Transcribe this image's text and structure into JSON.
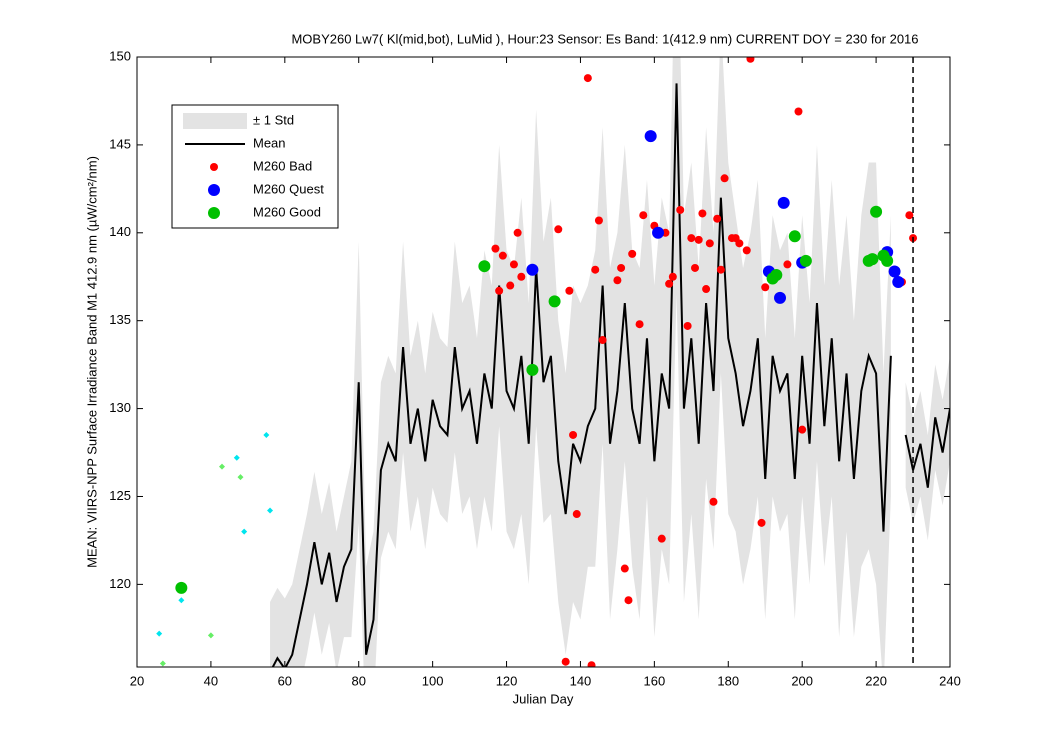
{
  "chart_data": {
    "type": "line",
    "title": "MOBY260   Lw7( Kl(mid,bot), LuMid ),   Hour:23 Sensor: Es Band: 1(412.9 nm)   CURRENT DOY = 230 for 2016",
    "xlabel": "Julian Day",
    "ylabel": "MEAN: VIIRS-NPP Surface Irradiance Band M1 412.9 nm (µW/cm²/nm)",
    "xlim": [
      20,
      240
    ],
    "ylim": [
      115.3,
      150
    ],
    "xticks": [
      20,
      40,
      60,
      80,
      100,
      120,
      140,
      160,
      180,
      200,
      220,
      240
    ],
    "yticks": [
      120,
      125,
      130,
      135,
      140,
      145,
      150
    ],
    "vline_x": 230,
    "x": [
      56,
      58,
      60,
      62,
      64,
      66,
      68,
      70,
      72,
      74,
      76,
      78,
      80,
      82,
      84,
      86,
      88,
      90,
      92,
      94,
      96,
      98,
      100,
      102,
      104,
      106,
      108,
      110,
      112,
      114,
      116,
      118,
      120,
      122,
      124,
      126,
      128,
      130,
      132,
      134,
      136,
      138,
      140,
      142,
      144,
      146,
      148,
      150,
      152,
      154,
      156,
      158,
      160,
      162,
      164,
      166,
      168,
      170,
      172,
      174,
      176,
      178,
      180,
      182,
      184,
      186,
      188,
      190,
      192,
      194,
      196,
      198,
      200,
      202,
      204,
      206,
      208,
      210,
      212,
      214,
      216,
      218,
      220,
      222,
      224,
      226,
      228,
      230,
      232,
      234,
      236,
      238,
      240
    ],
    "series": [
      {
        "name": "± 1 Std",
        "style": "band",
        "color": "#e3e3e3",
        "values": [
          4,
          4,
          4,
          4,
          4,
          4,
          4,
          4,
          4,
          4,
          4,
          5,
          8,
          5,
          5,
          5,
          5,
          5,
          6,
          5,
          5,
          5,
          5,
          5,
          5,
          6,
          6,
          6,
          6,
          7,
          7,
          8,
          8,
          8,
          9,
          8,
          9,
          8,
          9,
          8,
          8,
          9,
          9,
          8,
          9,
          9,
          10,
          9,
          9,
          9,
          10,
          9,
          10,
          10,
          10,
          12,
          11,
          10,
          10,
          10,
          9,
          10,
          10,
          9,
          9,
          9,
          9,
          8,
          8,
          8,
          8,
          8,
          8,
          8,
          9,
          8,
          9,
          10,
          9,
          9,
          10,
          11,
          12,
          9,
          8,
          null,
          3,
          3,
          3,
          3,
          3,
          3,
          3
        ]
      },
      {
        "name": "Mean",
        "style": "line",
        "color": "#000000",
        "values": [
          115,
          115.8,
          115.2,
          116,
          118,
          120,
          122.4,
          120,
          121.8,
          119,
          121,
          122,
          131.5,
          116,
          118,
          126.5,
          128,
          127,
          133.5,
          128,
          130,
          127,
          130.5,
          129,
          128.5,
          133.5,
          130,
          131,
          128,
          132,
          130,
          137,
          131,
          130,
          133,
          128,
          138,
          131.5,
          133,
          127,
          124,
          128,
          127,
          129,
          130,
          137,
          128,
          131,
          136,
          130,
          128,
          134,
          127,
          132,
          130,
          148.5,
          130,
          134,
          128,
          136,
          131,
          142,
          134,
          132,
          129,
          131,
          134,
          126,
          133,
          131,
          132,
          126,
          133,
          128,
          136,
          129,
          134,
          127,
          132,
          126,
          131,
          133,
          132,
          123,
          133,
          null,
          128.5,
          126.5,
          128,
          125.5,
          129.5,
          127.5,
          130
        ]
      },
      {
        "name": "M260 Bad",
        "style": "dot",
        "size": 4,
        "color": "#ff0000",
        "x": [
          117,
          118,
          119,
          121,
          122,
          123,
          124,
          134,
          137,
          138,
          139,
          136,
          142,
          143,
          144,
          145,
          146,
          150,
          151,
          152,
          153,
          154,
          156,
          157,
          160,
          162,
          163,
          164,
          165,
          167,
          169,
          170,
          171,
          172,
          173,
          174,
          175,
          176,
          177,
          178,
          179,
          183,
          181,
          182,
          185,
          186,
          189,
          190,
          196,
          199,
          200,
          227,
          229,
          230
        ],
        "values": [
          139.1,
          136.7,
          138.7,
          137,
          138.2,
          140,
          137.5,
          140.2,
          136.7,
          128.5,
          124,
          115.6,
          148.8,
          115.4,
          137.9,
          140.7,
          133.9,
          137.3,
          138,
          120.9,
          119.1,
          138.8,
          134.8,
          141,
          140.4,
          122.6,
          140,
          137.1,
          137.5,
          141.3,
          134.7,
          139.7,
          138,
          139.6,
          141.1,
          136.8,
          139.4,
          124.7,
          140.8,
          137.9,
          143.1,
          139.4,
          139.7,
          139.7,
          139,
          149.9,
          123.5,
          136.9,
          138.2,
          146.9,
          128.8,
          137.2,
          141,
          139.7
        ]
      },
      {
        "name": "M260 Quest",
        "style": "dot",
        "size": 6,
        "color": "#0000ff",
        "x": [
          127,
          159,
          161,
          191,
          194,
          195,
          200,
          223,
          225,
          226
        ],
        "values": [
          137.9,
          145.5,
          140,
          137.8,
          136.3,
          141.7,
          138.3,
          138.9,
          137.8,
          137.2
        ]
      },
      {
        "name": "M260 Good",
        "style": "dot",
        "size": 6,
        "color": "#00c000",
        "x": [
          32,
          114,
          127,
          133,
          192,
          193,
          198,
          201,
          218,
          219,
          220,
          222,
          223
        ],
        "values": [
          119.8,
          138.1,
          132.2,
          136.1,
          137.4,
          137.6,
          139.8,
          138.4,
          138.4,
          138.5,
          141.2,
          138.7,
          138.4
        ]
      },
      {
        "style": "diamond",
        "size": 3,
        "color": "#00e5ee",
        "x": [
          26,
          32,
          47,
          49,
          55,
          56
        ],
        "values": [
          117.2,
          119.1,
          127.2,
          123,
          128.5,
          124.2
        ]
      },
      {
        "style": "diamond",
        "size": 3,
        "color": "#66ee66",
        "x": [
          27,
          40,
          43,
          48
        ],
        "values": [
          115.5,
          117.1,
          126.7,
          126.1
        ]
      }
    ]
  }
}
